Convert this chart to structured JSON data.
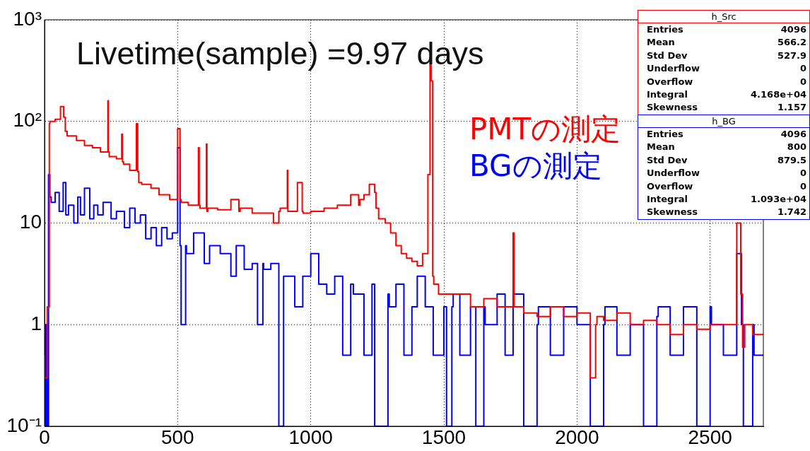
{
  "chart_data": {
    "type": "step",
    "log": "y",
    "grid": true,
    "xlim": [
      0,
      2700
    ],
    "xticks": [
      0,
      500,
      1000,
      1500,
      2000,
      2500
    ],
    "ylim": [
      0.1,
      1000
    ],
    "yticks": [
      {
        "value": 0.1,
        "label": "10⁻¹"
      },
      1,
      10,
      {
        "value": 100,
        "label": "10²"
      },
      {
        "value": 1000,
        "label": "10³"
      }
    ],
    "series": [
      {
        "name": "PMTの測定",
        "color": "#ff0000",
        "x": [
          0,
          10,
          18,
          20,
          40,
          60,
          72,
          78,
          85,
          120,
          150,
          180,
          210,
          238,
          240,
          243,
          270,
          290,
          293,
          297,
          320,
          345,
          350,
          354,
          365,
          400,
          430,
          470,
          500,
          509,
          513,
          540,
          578,
          581,
          584,
          608,
          610,
          613,
          650,
          700,
          730,
          735,
          780,
          820,
          860,
          880,
          885,
          912,
          914,
          917,
          950,
          968,
          971,
          1000,
          1050,
          1100,
          1150,
          1180,
          1185,
          1200,
          1220,
          1240,
          1245,
          1255,
          1280,
          1300,
          1320,
          1340,
          1360,
          1380,
          1400,
          1420,
          1440,
          1448,
          1452,
          1458,
          1462,
          1480,
          1500,
          1550,
          1600,
          1650,
          1700,
          1760,
          1764,
          1768,
          1800,
          1850,
          1900,
          1950,
          2000,
          2050,
          2070,
          2075,
          2100,
          2150,
          2200,
          2250,
          2300,
          2350,
          2400,
          2450,
          2500,
          2550,
          2600,
          2615,
          2622,
          2630,
          2660,
          2700
        ],
        "values": [
          0.5,
          0.3,
          1.5,
          95,
          100,
          105,
          140,
          110,
          80,
          72,
          65,
          58,
          55,
          50,
          160,
          50,
          45,
          43,
          75,
          40,
          38,
          33,
          95,
          32,
          25,
          24,
          22,
          19,
          17,
          85,
          17,
          16,
          15,
          55,
          15,
          14,
          60,
          13,
          14,
          13.5,
          17,
          13,
          14,
          12.5,
          12.5,
          10,
          13,
          14,
          33,
          13,
          13,
          25,
          13,
          12.5,
          13,
          14,
          15,
          19,
          15,
          17,
          19,
          24,
          20,
          14,
          11,
          10,
          8,
          6,
          5,
          4.5,
          4.2,
          3.8,
          5,
          30,
          460,
          250,
          3,
          2.5,
          2,
          2,
          2,
          1.5,
          1.8,
          1.5,
          8,
          1.5,
          1.5,
          1.3,
          1.2,
          1.5,
          1.2,
          1.3,
          0.3,
          1,
          1.2,
          1.1,
          1.3,
          1,
          1.1,
          1,
          0.8,
          1,
          0.9,
          1,
          1,
          10,
          2,
          0.6,
          1,
          0.8
        ]
      },
      {
        "name": "BGの測定",
        "color": "#0000ff",
        "x": [
          0,
          5,
          10,
          15,
          20,
          25,
          40,
          55,
          70,
          80,
          90,
          110,
          125,
          135,
          150,
          170,
          185,
          200,
          220,
          250,
          270,
          300,
          320,
          340,
          360,
          380,
          400,
          420,
          440,
          460,
          480,
          500,
          509,
          513,
          530,
          533,
          560,
          600,
          620,
          660,
          700,
          720,
          750,
          780,
          800,
          820,
          823,
          850,
          880,
          898,
          902,
          940,
          970,
          975,
          1000,
          1030,
          1060,
          1090,
          1120,
          1150,
          1160,
          1200,
          1230,
          1240,
          1290,
          1295,
          1320,
          1350,
          1380,
          1400,
          1430,
          1460,
          1500,
          1510,
          1530,
          1535,
          1560,
          1600,
          1620,
          1650,
          1655,
          1700,
          1730,
          1760,
          1800,
          1850,
          1855,
          1900,
          1950,
          2000,
          2050,
          2100,
          2105,
          2150,
          2200,
          2250,
          2300,
          2305,
          2350,
          2400,
          2450,
          2500,
          2505,
          2550,
          2600,
          2618,
          2625,
          2660,
          2665,
          2700
        ],
        "values": [
          0.5,
          0.1,
          1,
          0.1,
          30,
          18,
          16,
          20,
          13,
          25,
          12,
          15,
          10,
          18,
          12,
          22,
          11,
          15,
          12,
          16,
          11,
          13,
          9,
          14,
          10,
          12,
          7,
          9,
          6,
          9,
          7,
          8,
          55,
          6,
          1,
          6,
          5,
          8,
          4,
          6,
          5,
          3,
          6,
          3.5,
          4,
          1,
          4,
          3.5,
          4,
          0.1,
          3,
          3,
          1.5,
          3,
          3,
          5,
          2.5,
          2,
          3,
          0.5,
          2.5,
          2,
          0.5,
          2.5,
          0.1,
          2,
          1.5,
          2.5,
          0.5,
          1.5,
          3,
          1.5,
          0.5,
          1.5,
          0.1,
          1.5,
          2,
          0.5,
          1.5,
          0.1,
          1.5,
          1,
          2,
          0.5,
          2,
          0.1,
          1,
          1.5,
          0.5,
          1.5,
          1,
          0.1,
          1,
          1.5,
          0.5,
          1,
          0.1,
          1.2,
          1.5,
          0.5,
          1.5,
          0.1,
          1.5,
          1,
          0.5,
          5,
          1,
          0.1,
          1,
          0.5
        ]
      }
    ],
    "annotations": [
      "Livetime(sample) =9.97 days",
      "h_Src",
      "Entries 4096",
      "Mean 566.2",
      "Std Dev 527.9",
      "Underflow 0",
      "Overflow 0",
      "Integral 4.168e+04",
      "Skewness 1.157",
      "h_BG",
      "Entries 4096",
      "Mean 800",
      "Std Dev 879.5",
      "Underflow 0",
      "Overflow 0",
      "Integral 1.093e+04",
      "Skewness 1.742"
    ]
  }
}
